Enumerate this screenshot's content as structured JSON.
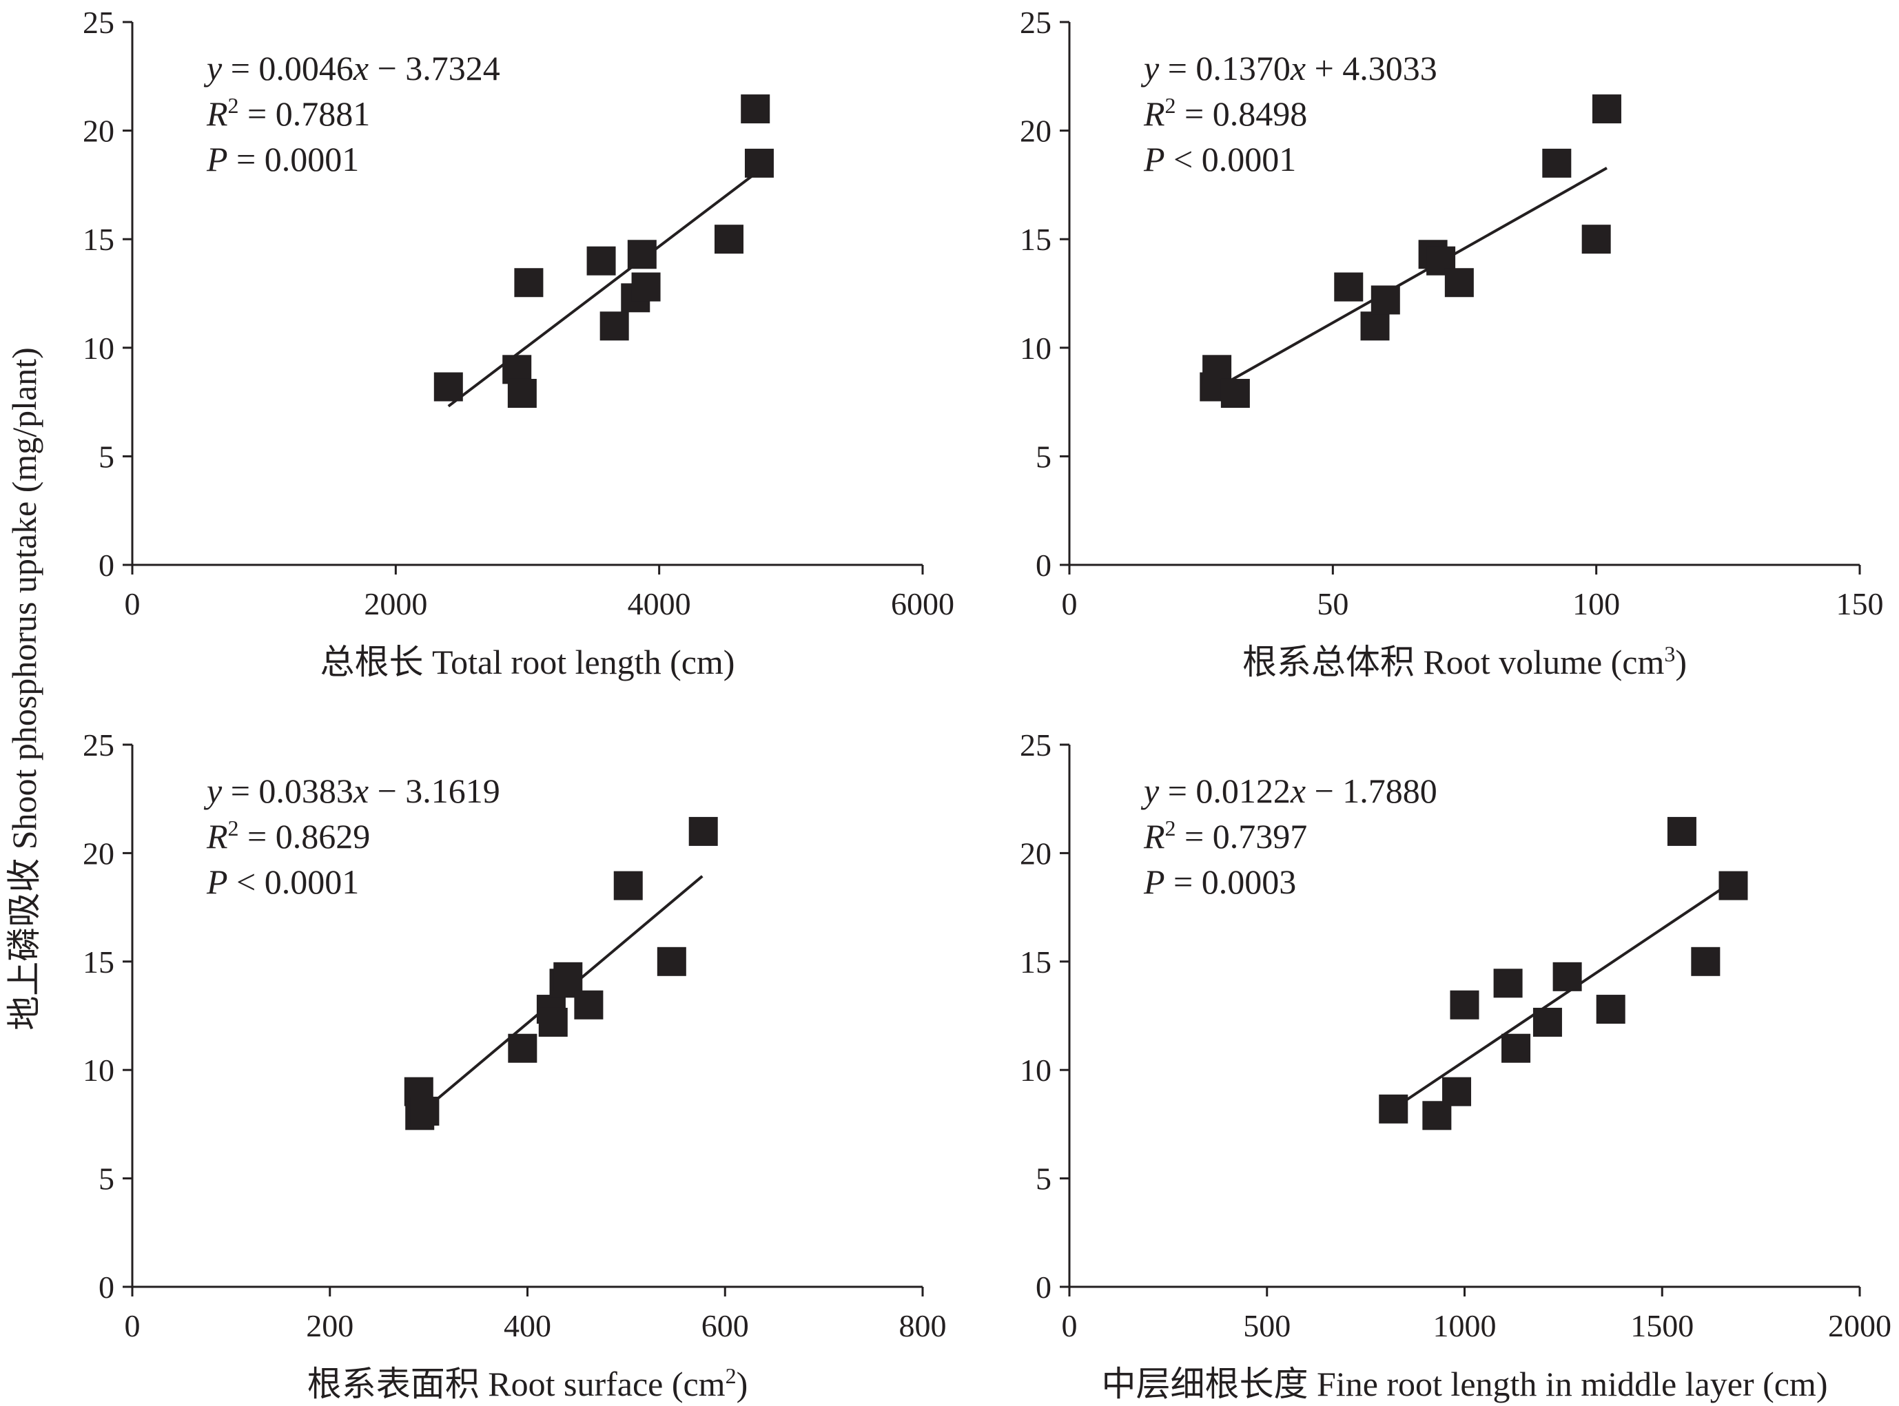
{
  "figure": {
    "y_axis_label": "地上磷吸收 Shoot phosphorus uptake (mg/plant)"
  },
  "chart_data": [
    {
      "type": "scatter",
      "panel": "top-left",
      "xlabel": "总根长 Total root length (cm)",
      "ylabel": "地上磷吸收 Shoot phosphorus uptake (mg/plant)",
      "xlim": [
        0,
        6000
      ],
      "ylim": [
        0,
        25
      ],
      "xticks": [
        0,
        2000,
        4000,
        6000
      ],
      "yticks": [
        0,
        5,
        10,
        15,
        20,
        25
      ],
      "equation": {
        "y": "y",
        "eq": " = 0.0046",
        "x": "x",
        "rest": " − 3.7324"
      },
      "r2": {
        "r": "R",
        "sup": "2",
        "rest": " = 0.7881"
      },
      "p": {
        "p": "P",
        "rest": " = 0.0001"
      },
      "fit_line": {
        "slope": 0.0046,
        "intercept": -3.7324,
        "x_range": [
          2400,
          4760
        ]
      },
      "points": [
        [
          2400,
          8.2
        ],
        [
          2920,
          9.0
        ],
        [
          2960,
          7.9
        ],
        [
          3010,
          13.0
        ],
        [
          3560,
          14.0
        ],
        [
          3660,
          11.0
        ],
        [
          3820,
          12.3
        ],
        [
          3870,
          14.3
        ],
        [
          3900,
          12.8
        ],
        [
          4530,
          15.0
        ],
        [
          4730,
          21.0
        ],
        [
          4760,
          18.5
        ]
      ]
    },
    {
      "type": "scatter",
      "panel": "top-right",
      "xlabel": "根系总体积 Root volume (cm",
      "xlabel_sup": "3",
      "xlabel_end": ")",
      "xlim": [
        0,
        150
      ],
      "ylim": [
        0,
        25
      ],
      "xticks": [
        0,
        50,
        100,
        150
      ],
      "yticks": [
        0,
        5,
        10,
        15,
        20,
        25
      ],
      "equation": {
        "y": "y",
        "eq": " = 0.1370",
        "x": "x",
        "rest": " + 4.3033"
      },
      "r2": {
        "r": "R",
        "sup": "2",
        "rest": " = 0.8498"
      },
      "p": {
        "p": "P",
        "rest": " < 0.0001"
      },
      "fit_line": {
        "slope": 0.137,
        "intercept": 4.3033,
        "x_range": [
          29,
          102
        ]
      },
      "points": [
        [
          27.5,
          8.2
        ],
        [
          28,
          9.0
        ],
        [
          31.5,
          7.9
        ],
        [
          53,
          12.8
        ],
        [
          58,
          11.0
        ],
        [
          60,
          12.2
        ],
        [
          69,
          14.3
        ],
        [
          70.5,
          14.0
        ],
        [
          74,
          13.0
        ],
        [
          92.5,
          18.5
        ],
        [
          100,
          15.0
        ],
        [
          102,
          21.0
        ]
      ]
    },
    {
      "type": "scatter",
      "panel": "bottom-left",
      "xlabel": "根系表面积 Root surface (cm",
      "xlabel_sup": "2",
      "xlabel_end": ")",
      "xlim": [
        0,
        800
      ],
      "ylim": [
        0,
        25
      ],
      "xticks": [
        0,
        200,
        400,
        600,
        800
      ],
      "yticks": [
        0,
        5,
        10,
        15,
        20,
        25
      ],
      "equation": {
        "y": "y",
        "eq": " = 0.0383",
        "x": "x",
        "rest": " − 3.1619"
      },
      "r2": {
        "r": "R",
        "sup": "2",
        "rest": " = 0.8629"
      },
      "p": {
        "p": "P",
        "rest": " < 0.0001"
      },
      "fit_line": {
        "slope": 0.0383,
        "intercept": -3.1619,
        "x_range": [
          292,
          577
        ]
      },
      "points": [
        [
          290,
          9.0
        ],
        [
          291,
          7.9
        ],
        [
          296,
          8.1
        ],
        [
          395,
          11.0
        ],
        [
          424,
          12.8
        ],
        [
          426,
          12.2
        ],
        [
          437,
          14.0
        ],
        [
          441,
          14.3
        ],
        [
          462,
          13.0
        ],
        [
          502,
          18.5
        ],
        [
          546,
          15.0
        ],
        [
          578,
          21.0
        ]
      ]
    },
    {
      "type": "scatter",
      "panel": "bottom-right",
      "xlabel": "中层细根长度 Fine root length in middle layer (cm)",
      "xlim": [
        0,
        2000
      ],
      "ylim": [
        0,
        25
      ],
      "xticks": [
        0,
        500,
        1000,
        1500,
        2000
      ],
      "yticks": [
        0,
        5,
        10,
        15,
        20,
        25
      ],
      "equation": {
        "y": "y",
        "eq": " = 0.0122",
        "x": "x",
        "rest": " − 1.7880"
      },
      "r2": {
        "r": "R",
        "sup": "2",
        "rest": " = 0.7397"
      },
      "p": {
        "p": "P",
        "rest": " = 0.0003"
      },
      "fit_line": {
        "slope": 0.0122,
        "intercept": -1.788,
        "x_range": [
          820,
          1680
        ]
      },
      "points": [
        [
          820,
          8.2
        ],
        [
          930,
          7.9
        ],
        [
          980,
          9.0
        ],
        [
          1000,
          13.0
        ],
        [
          1110,
          14.0
        ],
        [
          1130,
          11.0
        ],
        [
          1210,
          12.2
        ],
        [
          1260,
          14.3
        ],
        [
          1370,
          12.8
        ],
        [
          1550,
          21.0
        ],
        [
          1610,
          15.0
        ],
        [
          1680,
          18.5
        ]
      ]
    }
  ]
}
